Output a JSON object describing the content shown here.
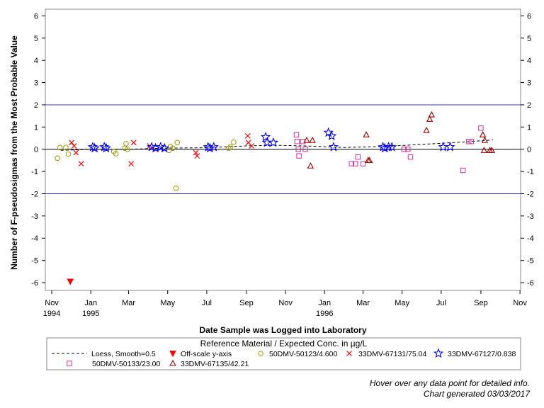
{
  "chart_data": {
    "type": "scatter",
    "title": "",
    "xlabel": "Date Sample was Logged into Laboratory",
    "ylabel": "Number of F-pseudosigmas from the Most Probable Value",
    "x_axis": {
      "unit": "month",
      "range": [
        "1994-10-22",
        "1996-11-02"
      ],
      "ticks": [
        {
          "date": "1994-11-01",
          "label": "Nov",
          "year": "1994"
        },
        {
          "date": "1995-01-01",
          "label": "Jan",
          "year": "1995"
        },
        {
          "date": "1995-03-01",
          "label": "Mar",
          "year": ""
        },
        {
          "date": "1995-05-01",
          "label": "May",
          "year": ""
        },
        {
          "date": "1995-07-01",
          "label": "Jul",
          "year": ""
        },
        {
          "date": "1995-09-01",
          "label": "Sep",
          "year": ""
        },
        {
          "date": "1995-11-01",
          "label": "Nov",
          "year": ""
        },
        {
          "date": "1996-01-01",
          "label": "Jan",
          "year": "1996"
        },
        {
          "date": "1996-03-01",
          "label": "Mar",
          "year": ""
        },
        {
          "date": "1996-05-01",
          "label": "May",
          "year": ""
        },
        {
          "date": "1996-07-01",
          "label": "Jul",
          "year": ""
        },
        {
          "date": "1996-09-01",
          "label": "Sep",
          "year": ""
        },
        {
          "date": "1996-11-01",
          "label": "Nov",
          "year": ""
        }
      ]
    },
    "y_axis": {
      "range": [
        -6.35,
        6.3
      ],
      "ticks": [
        -6,
        -5,
        -4,
        -3,
        -2,
        -1,
        0,
        1,
        2,
        3,
        4,
        5,
        6
      ],
      "tick_labels": [
        "-6",
        "-5",
        "-4",
        "-3",
        "-2",
        "-1",
        "0",
        "1",
        "2",
        "3",
        "4",
        "5",
        "6"
      ]
    },
    "reference_lines": [
      {
        "y": 2,
        "color": "#3333cc"
      },
      {
        "y": -2,
        "color": "#3333cc"
      },
      {
        "y": 0,
        "color": "#000000"
      }
    ],
    "legend": {
      "title": "Reference Material / Expected Conc. in µg/L",
      "position": "bottom",
      "entries": [
        {
          "label": "Loess, Smooth=0.5",
          "marker": "dashed-line",
          "color": "#000000"
        },
        {
          "label": "Off-scale y-axis",
          "marker": "filled-triangle-down",
          "color": "#ff0000"
        },
        {
          "label": "50DMV-50123/4.600",
          "marker": "circle",
          "color": "#999900"
        },
        {
          "label": "33DMV-67131/75.04",
          "marker": "x",
          "color": "#ff0000"
        },
        {
          "label": "33DMV-67127/0.838",
          "marker": "star",
          "color": "#0000ff"
        },
        {
          "label": "50DMV-50133/23.00",
          "marker": "square",
          "color": "#cc3399"
        },
        {
          "label": "33DMV-67135/42.21",
          "marker": "triangle",
          "color": "#990000"
        }
      ]
    },
    "series": [
      {
        "name": "50DMV-50123/4.600",
        "marker": "circle",
        "color": "#999900",
        "points": [
          {
            "x": "1994-11-10",
            "y": -0.4
          },
          {
            "x": "1994-11-14",
            "y": 0.08
          },
          {
            "x": "1994-11-23",
            "y": 0.08
          },
          {
            "x": "1994-11-27",
            "y": -0.22
          },
          {
            "x": "1995-02-06",
            "y": -0.1
          },
          {
            "x": "1995-02-09",
            "y": -0.2
          },
          {
            "x": "1995-02-23",
            "y": 0.05
          },
          {
            "x": "1995-02-25",
            "y": 0.25
          },
          {
            "x": "1995-02-27",
            "y": 0.0
          },
          {
            "x": "1995-05-03",
            "y": -0.05
          },
          {
            "x": "1995-05-05",
            "y": 0.12
          },
          {
            "x": "1995-05-09",
            "y": 0.05
          },
          {
            "x": "1995-05-14",
            "y": -1.75
          },
          {
            "x": "1995-05-16",
            "y": 0.3
          },
          {
            "x": "1995-08-04",
            "y": 0.05
          },
          {
            "x": "1995-08-07",
            "y": 0.1
          },
          {
            "x": "1995-08-12",
            "y": 0.32
          }
        ]
      },
      {
        "name": "33DMV-67131/75.04",
        "marker": "x",
        "color": "#ff0000",
        "points": [
          {
            "x": "1994-12-02",
            "y": 0.3
          },
          {
            "x": "1994-12-06",
            "y": 0.15
          },
          {
            "x": "1994-12-09",
            "y": -0.15
          },
          {
            "x": "1994-12-17",
            "y": -0.65
          },
          {
            "x": "1995-03-05",
            "y": -0.65
          },
          {
            "x": "1995-03-09",
            "y": 0.3
          },
          {
            "x": "1995-04-03",
            "y": 0.15
          },
          {
            "x": "1995-06-14",
            "y": -0.15
          },
          {
            "x": "1995-06-16",
            "y": -0.3
          },
          {
            "x": "1995-09-03",
            "y": 0.6
          },
          {
            "x": "1995-09-04",
            "y": 0.3
          },
          {
            "x": "1995-09-09",
            "y": 0.15
          }
        ]
      },
      {
        "name": "33DMV-67127/0.838",
        "marker": "star",
        "color": "#0000ff",
        "points": [
          {
            "x": "1995-01-04",
            "y": 0.1
          },
          {
            "x": "1995-01-07",
            "y": 0.05
          },
          {
            "x": "1995-01-22",
            "y": 0.1
          },
          {
            "x": "1995-01-25",
            "y": 0.05
          },
          {
            "x": "1995-04-06",
            "y": 0.1
          },
          {
            "x": "1995-04-12",
            "y": 0.05
          },
          {
            "x": "1995-04-20",
            "y": 0.1
          },
          {
            "x": "1995-04-26",
            "y": 0.05
          },
          {
            "x": "1995-07-03",
            "y": 0.1
          },
          {
            "x": "1995-07-06",
            "y": 0.05
          },
          {
            "x": "1995-07-12",
            "y": 0.1
          },
          {
            "x": "1995-10-01",
            "y": 0.55
          },
          {
            "x": "1995-10-03",
            "y": 0.3
          },
          {
            "x": "1995-10-13",
            "y": 0.3
          },
          {
            "x": "1996-01-07",
            "y": 0.75
          },
          {
            "x": "1996-01-12",
            "y": 0.6
          },
          {
            "x": "1996-01-15",
            "y": 0.1
          },
          {
            "x": "1996-04-01",
            "y": 0.1
          },
          {
            "x": "1996-04-04",
            "y": 0.05
          },
          {
            "x": "1996-04-10",
            "y": 0.1
          },
          {
            "x": "1996-04-15",
            "y": 0.1
          },
          {
            "x": "1996-07-04",
            "y": 0.1
          },
          {
            "x": "1996-07-15",
            "y": 0.1
          }
        ]
      },
      {
        "name": "50DMV-50133/23.00",
        "marker": "square",
        "color": "#cc3399",
        "points": [
          {
            "x": "1995-11-18",
            "y": 0.65
          },
          {
            "x": "1995-11-19",
            "y": 0.35
          },
          {
            "x": "1995-11-21",
            "y": 0.0
          },
          {
            "x": "1995-11-22",
            "y": -0.3
          },
          {
            "x": "1995-11-28",
            "y": 0.35
          },
          {
            "x": "1995-12-02",
            "y": 0.0
          },
          {
            "x": "1996-02-12",
            "y": -0.65
          },
          {
            "x": "1996-02-18",
            "y": -0.65
          },
          {
            "x": "1996-02-22",
            "y": -0.35
          },
          {
            "x": "1996-03-01",
            "y": -0.65
          },
          {
            "x": "1996-05-04",
            "y": 0.0
          },
          {
            "x": "1996-05-10",
            "y": 0.0
          },
          {
            "x": "1996-05-14",
            "y": -0.35
          },
          {
            "x": "1996-08-04",
            "y": -0.95
          },
          {
            "x": "1996-08-13",
            "y": 0.35
          },
          {
            "x": "1996-08-17",
            "y": 0.35
          },
          {
            "x": "1996-09-01",
            "y": 0.95
          }
        ]
      },
      {
        "name": "33DMV-67135/42.21",
        "marker": "triangle",
        "color": "#990000",
        "points": [
          {
            "x": "1995-12-04",
            "y": 0.4
          },
          {
            "x": "1995-12-10",
            "y": -0.75
          },
          {
            "x": "1995-12-13",
            "y": 0.4
          },
          {
            "x": "1996-03-06",
            "y": 0.65
          },
          {
            "x": "1996-03-09",
            "y": -0.5
          },
          {
            "x": "1996-03-11",
            "y": -0.5
          },
          {
            "x": "1996-06-08",
            "y": 0.85
          },
          {
            "x": "1996-06-13",
            "y": 1.35
          },
          {
            "x": "1996-06-16",
            "y": 1.55
          },
          {
            "x": "1996-09-04",
            "y": 0.65
          },
          {
            "x": "1996-09-07",
            "y": 0.4
          },
          {
            "x": "1996-09-06",
            "y": -0.05
          },
          {
            "x": "1996-09-15",
            "y": -0.05
          },
          {
            "x": "1996-09-18",
            "y": -0.05
          }
        ]
      },
      {
        "name": "Off-scale y-axis",
        "marker": "filled-triangle-down",
        "color": "#ff0000",
        "points": [
          {
            "x": "1994-11-30",
            "y": -5.95
          }
        ]
      }
    ],
    "loess": {
      "name": "Loess, Smooth=0.5",
      "style": "dashed",
      "color": "#000000",
      "points": [
        {
          "x": "1994-11-15",
          "y": -0.05
        },
        {
          "x": "1995-01-01",
          "y": 0.0
        },
        {
          "x": "1995-03-01",
          "y": 0.0
        },
        {
          "x": "1995-05-01",
          "y": 0.05
        },
        {
          "x": "1995-07-01",
          "y": 0.07
        },
        {
          "x": "1995-09-01",
          "y": 0.15
        },
        {
          "x": "1995-10-15",
          "y": 0.18
        },
        {
          "x": "1995-12-01",
          "y": 0.15
        },
        {
          "x": "1996-02-01",
          "y": 0.08
        },
        {
          "x": "1996-04-01",
          "y": 0.12
        },
        {
          "x": "1996-06-01",
          "y": 0.22
        },
        {
          "x": "1996-08-01",
          "y": 0.32
        },
        {
          "x": "1996-09-20",
          "y": 0.42
        }
      ]
    }
  },
  "notes": {
    "hover": "Hover over any data point for detailed info.",
    "generated": "Chart generated 03/03/2017"
  }
}
